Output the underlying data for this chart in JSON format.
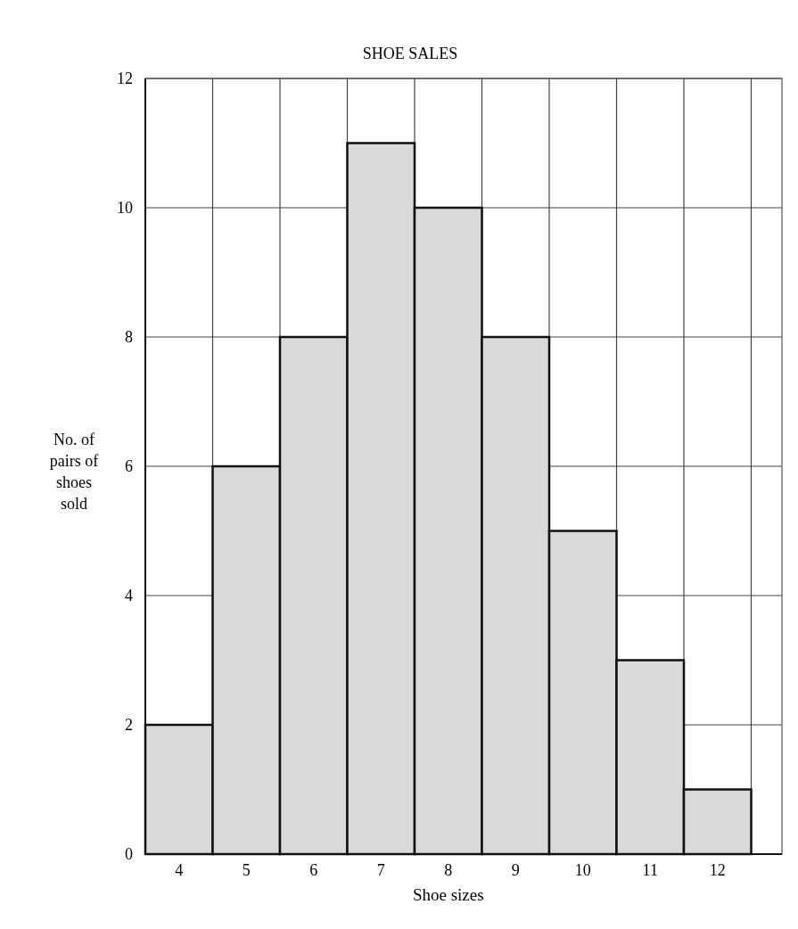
{
  "chart_data": {
    "type": "bar",
    "title": "SHOE SALES",
    "xlabel": "Shoe sizes",
    "ylabel": "No. of pairs of shoes sold",
    "categories": [
      "4",
      "5",
      "6",
      "7",
      "8",
      "9",
      "10",
      "11",
      "12"
    ],
    "values": [
      2,
      6,
      8,
      11,
      10,
      8,
      5,
      3,
      1
    ],
    "color": "#d9d9d9",
    "ylim": [
      0,
      12
    ],
    "yticks": [
      0,
      2,
      4,
      6,
      8,
      10,
      12
    ],
    "grid": true
  }
}
